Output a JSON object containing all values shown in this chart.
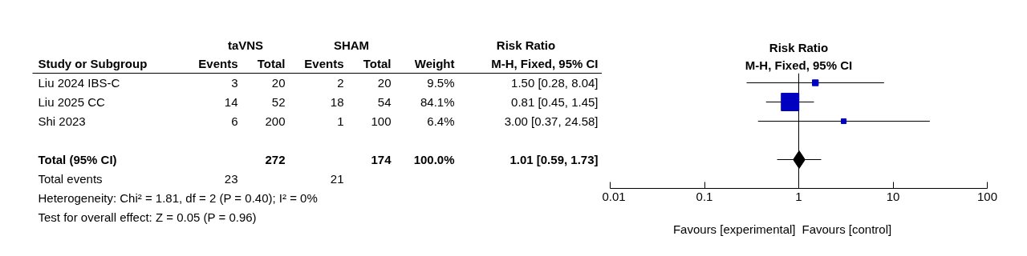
{
  "chart_data": [
    {
      "type": "other",
      "ylabel": "Study or Subgroup",
      "categories": [
        "Events",
        "Total",
        "Events",
        "Total",
        "Weight",
        "M-H, Fixed, 95% CI"
      ],
      "y_categories": [
        "Liu 2024 IBS-C",
        "Liu 2025 CC",
        "Shi 2023",
        null,
        "Total (95% CI)",
        "Total events"
      ],
      "cell_labels": [
        [
          "3",
          "20",
          "2",
          "20",
          "9.5%",
          "1.50 [0.28, 8.04]"
        ],
        [
          "14",
          "52",
          "18",
          "54",
          "84.1%",
          "0.81 [0.45, 1.45]"
        ],
        [
          "6",
          "200",
          "1",
          "100",
          "6.4%",
          "3.00 [0.37, 24.58]"
        ],
        [
          null,
          null,
          null,
          null,
          null,
          null
        ],
        [
          null,
          "272",
          null,
          "174",
          "100.0%",
          "1.01 [0.59, 1.73]"
        ],
        [
          "23",
          null,
          "21",
          null,
          null,
          null
        ]
      ],
      "annotations": [
        "taVNS",
        "SHAM",
        "Risk Ratio",
        "Heterogeneity: Chi² = 1.81, df = 2 (P = 0.40); I² = 0%",
        "Test for overall effect: Z = 0.05 (P = 0.96)"
      ]
    },
    {
      "type": "scatter",
      "orientation": "horizontal",
      "title": "Risk Ratio",
      "subtitle": "M-H, Fixed, 95% CI",
      "categories": [
        null,
        null,
        null,
        null,
        null,
        null
      ],
      "log": "x",
      "xlim": [
        0.01,
        100
      ],
      "xticks": [
        0.01,
        0.1,
        1,
        10,
        100
      ],
      "grid": false,
      "tick_labels": "x",
      "ref_lines": [
        {
          "axis": "x",
          "value": 1
        }
      ],
      "annotations": [
        "Favours [experimental]",
        "Favours [control]"
      ],
      "series": [
        {
          "color": "#0000c0",
          "marker": "square",
          "values": [
            1.5,
            0.81,
            3.0,
            null,
            null,
            null
          ],
          "errors": [
            [
              0.28,
              8.04
            ],
            [
              0.45,
              1.45
            ],
            [
              0.37,
              24.58
            ],
            null,
            null,
            null
          ],
          "sizes": [
            0.113,
            1,
            0.076,
            null,
            null,
            null
          ]
        },
        {
          "color": "#000000",
          "marker": "diamond",
          "values": [
            null,
            null,
            null,
            null,
            1.01,
            null
          ],
          "errors": [
            null,
            null,
            null,
            null,
            [
              0.59,
              1.73
            ],
            null
          ]
        }
      ]
    }
  ]
}
